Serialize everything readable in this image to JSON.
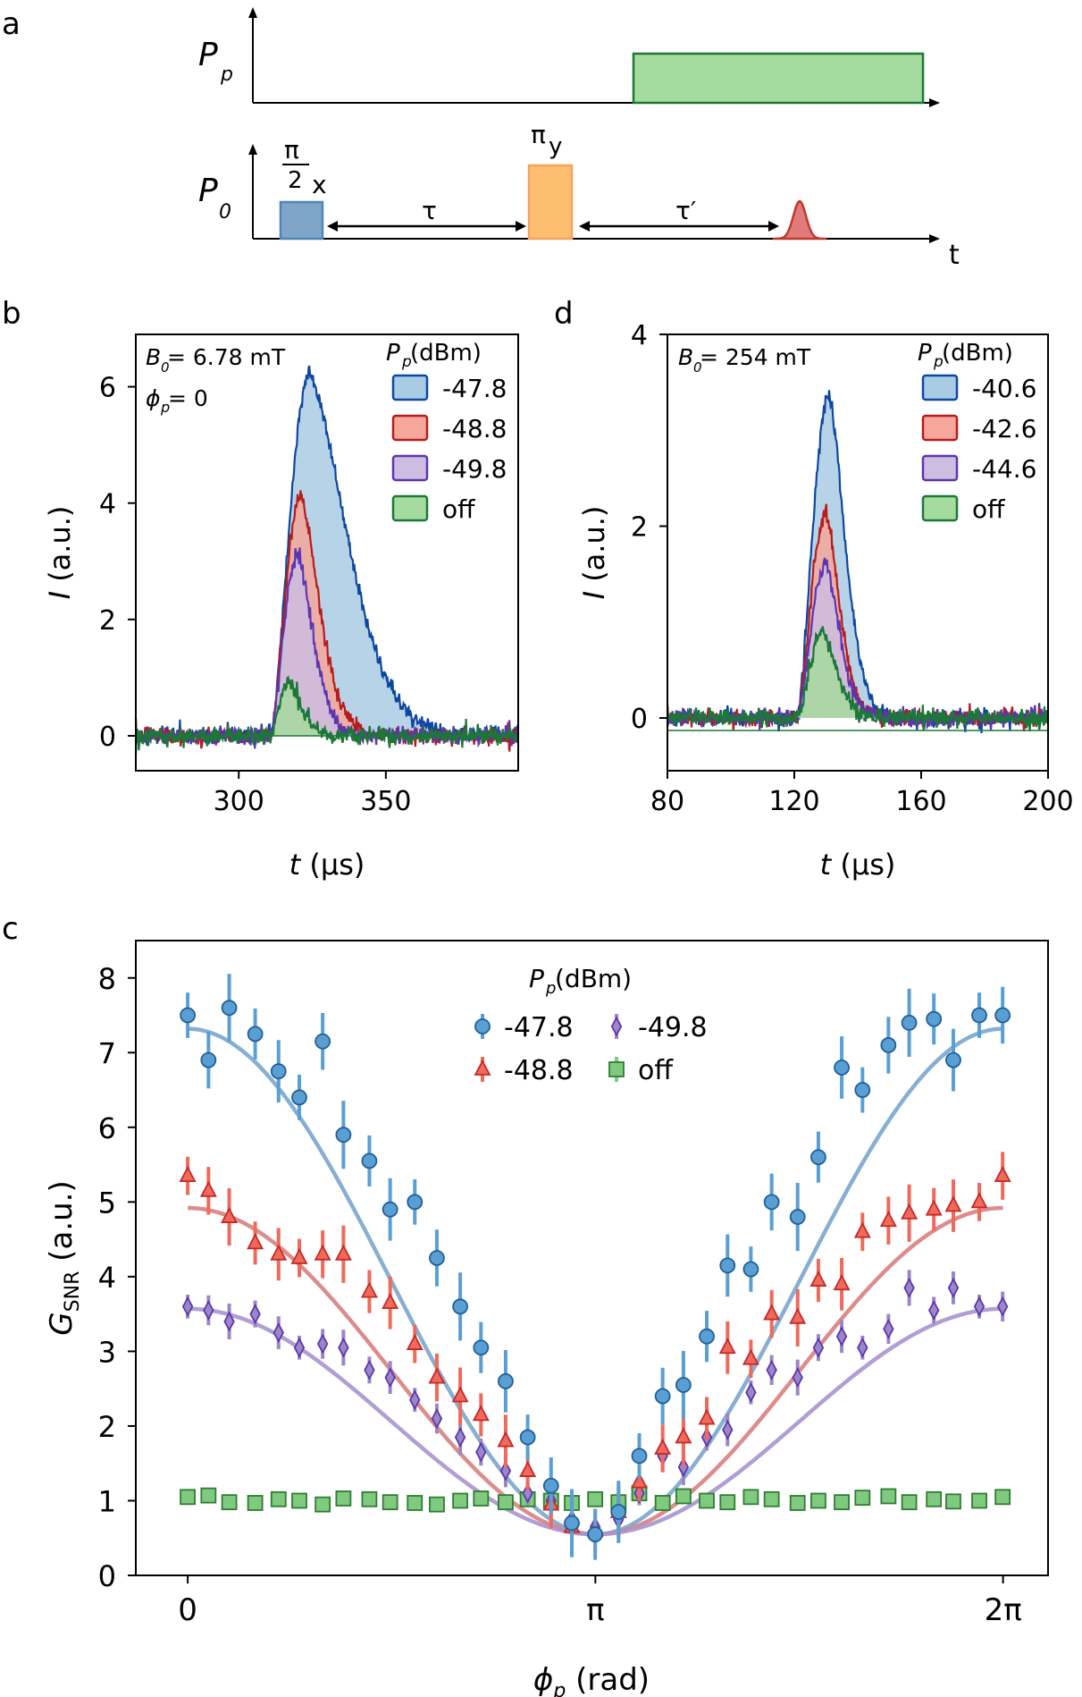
{
  "panel_a": {
    "label": "a",
    "pump_axis_label": "P",
    "pump_axis_sub": "p",
    "probe_axis_label": "P",
    "probe_axis_sub": "0",
    "time_label": "t",
    "pi2_num": "π",
    "pi2_den": "2",
    "pi2_sub": "x",
    "piy_main": "π",
    "piy_sub": "y",
    "tau": "τ",
    "tau_prime": "τ′",
    "colors": {
      "pump": "#a6dba0",
      "pump_edge": "#1b7837",
      "pi2": "#7fa6c9",
      "pi2_edge": "#4f86b8",
      "piy": "#fdbf6f",
      "piy_edge": "#f4a261",
      "echo": "#e07b7b",
      "echo_edge": "#c0392b"
    }
  },
  "chart_data": [
    {
      "id": "b",
      "type": "area",
      "panel_label": "b",
      "annotation_line1": "B",
      "annotation_line1_sub": "0",
      "annotation_line1_value": " = 6.78 mT",
      "annotation_line2": "ϕ",
      "annotation_line2_sub": "p",
      "annotation_line2_value": " = 0",
      "xlabel_italic": "t",
      "xlabel_rest": " (μs)",
      "ylabel_italic": "I",
      "ylabel_rest": " (a.u.)",
      "xlim": [
        265,
        395
      ],
      "ylim": [
        -0.6,
        6.9
      ],
      "xticks": [
        300,
        350
      ],
      "yticks": [
        0,
        2,
        4,
        6
      ],
      "legend_title_italic": "P",
      "legend_title_sub": "p",
      "legend_title_rest": " (dBm)",
      "series": [
        {
          "name": "-47.8",
          "fill": "#a9cbe4",
          "edge": "#0d47a1",
          "t0": 311,
          "peak_t": 324,
          "peak": 6.2,
          "rise": 6.5,
          "fall": 18,
          "seed": 11
        },
        {
          "name": "-48.8",
          "fill": "#f4a79a",
          "edge": "#b71c1c",
          "t0": 311,
          "peak_t": 321,
          "peak": 4.1,
          "rise": 5,
          "fall": 9,
          "seed": 23
        },
        {
          "name": "-49.8",
          "fill": "#cdbde0",
          "edge": "#5e35b1",
          "t0": 311,
          "peak_t": 320,
          "peak": 3.1,
          "rise": 5,
          "fall": 7.5,
          "seed": 37
        },
        {
          "name": "off",
          "fill": "#a6dba0",
          "edge": "#1b7837",
          "t0": 311,
          "peak_t": 317,
          "peak": 0.95,
          "rise": 4,
          "fall": 6,
          "seed": 53
        }
      ]
    },
    {
      "id": "d",
      "type": "area",
      "panel_label": "d",
      "annotation_line1": "B",
      "annotation_line1_sub": "0",
      "annotation_line1_value": " = 254 mT",
      "xlabel_italic": "t",
      "xlabel_rest": "  (μs)",
      "ylabel_italic": "I",
      "ylabel_rest": " (a.u.)",
      "xlim": [
        80,
        200
      ],
      "ylim": [
        -0.55,
        4.0
      ],
      "xticks": [
        80,
        120,
        160,
        200
      ],
      "yticks": [
        0,
        2,
        4
      ],
      "legend_title_italic": "P",
      "legend_title_sub": "p",
      "legend_title_rest": " (dBm)",
      "series": [
        {
          "name": "-40.6",
          "fill": "#a9cbe4",
          "edge": "#0d47a1",
          "t0": 121,
          "peak_t": 131,
          "peak": 3.35,
          "rise": 4,
          "fall": 7,
          "seed": 71
        },
        {
          "name": "-42.6",
          "fill": "#f4a79a",
          "edge": "#b71c1c",
          "t0": 121,
          "peak_t": 130,
          "peak": 2.15,
          "rise": 4,
          "fall": 6,
          "seed": 83
        },
        {
          "name": "-44.6",
          "fill": "#cdbde0",
          "edge": "#5e35b1",
          "t0": 121,
          "peak_t": 130,
          "peak": 1.6,
          "rise": 4,
          "fall": 6,
          "seed": 97
        },
        {
          "name": "off",
          "fill": "#a6dba0",
          "edge": "#1b7837",
          "t0": 121,
          "peak_t": 129,
          "peak": 0.9,
          "rise": 4,
          "fall": 6,
          "seed": 113
        }
      ]
    },
    {
      "id": "c",
      "type": "scatter",
      "panel_label": "c",
      "xlabel_italic": "ϕ",
      "xlabel_sub": "p",
      "xlabel_rest": " (rad)",
      "ylabel_main": "G",
      "ylabel_sub": "SNR",
      "ylabel_rest": " (a.u.)",
      "xlim": [
        -0.4,
        6.63
      ],
      "ylim": [
        0,
        8.5
      ],
      "xtick_values": [
        0,
        3.14159,
        6.28318
      ],
      "xtick_labels": [
        "0",
        "π",
        "2π"
      ],
      "yticks": [
        0,
        1,
        2,
        3,
        4,
        5,
        6,
        7,
        8
      ],
      "legend_title_italic": "P",
      "legend_title_sub": "p",
      "legend_title_rest": " (dBm)",
      "x": [
        0.0,
        0.16,
        0.32,
        0.52,
        0.7,
        0.86,
        1.04,
        1.2,
        1.4,
        1.56,
        1.75,
        1.92,
        2.1,
        2.26,
        2.45,
        2.62,
        2.8,
        2.96,
        3.14,
        3.32,
        3.48,
        3.66,
        3.82,
        4.0,
        4.16,
        4.34,
        4.5,
        4.7,
        4.86,
        5.04,
        5.2,
        5.4,
        5.56,
        5.75,
        5.9,
        6.1,
        6.28
      ],
      "series": [
        {
          "name": "-47.8",
          "marker": "circle",
          "color": "#5a9fd4",
          "edge": "#1f5f99",
          "fit_color": "#7aa6cf",
          "values": [
            7.5,
            6.9,
            7.6,
            7.25,
            6.75,
            6.4,
            7.15,
            5.9,
            5.55,
            4.9,
            5.0,
            4.25,
            3.6,
            3.05,
            2.6,
            1.85,
            1.2,
            0.7,
            0.55,
            0.85,
            1.6,
            2.4,
            2.55,
            3.2,
            4.15,
            4.1,
            5.0,
            4.8,
            5.6,
            6.8,
            6.5,
            7.1,
            7.4,
            7.45,
            6.9,
            7.5,
            7.5
          ],
          "err": 0.38,
          "fit_max": 7.32,
          "fit_min": 0.55
        },
        {
          "name": "-48.8",
          "marker": "triangle",
          "color": "#ef6a5a",
          "edge": "#c62828",
          "fit_color": "#d98080",
          "values": [
            5.35,
            5.15,
            4.8,
            4.45,
            4.3,
            4.25,
            4.3,
            4.3,
            3.8,
            3.65,
            3.1,
            2.65,
            2.4,
            2.15,
            1.8,
            1.4,
            0.95,
            0.65,
            0.6,
            0.85,
            1.25,
            1.7,
            1.85,
            2.1,
            3.05,
            2.9,
            3.5,
            3.45,
            3.95,
            3.9,
            4.6,
            4.75,
            4.85,
            4.9,
            4.95,
            5.0,
            5.35
          ],
          "err": 0.32,
          "fit_max": 4.92,
          "fit_min": 0.55
        },
        {
          "name": "-49.8",
          "marker": "diamond",
          "color": "#9b87c6",
          "edge": "#5e35b1",
          "fit_color": "#a793cf",
          "values": [
            3.6,
            3.55,
            3.4,
            3.5,
            3.25,
            3.05,
            3.1,
            3.05,
            2.75,
            2.65,
            2.35,
            2.1,
            1.85,
            1.65,
            1.4,
            1.1,
            1.0,
            0.75,
            0.65,
            0.75,
            1.1,
            1.6,
            1.45,
            1.85,
            1.95,
            2.45,
            2.75,
            2.65,
            3.05,
            3.2,
            3.05,
            3.3,
            3.85,
            3.55,
            3.85,
            3.6,
            3.6
          ],
          "err": 0.2,
          "fit_max": 3.57,
          "fit_min": 0.55
        },
        {
          "name": "off",
          "marker": "square",
          "color": "#7fca7f",
          "edge": "#2e7d32",
          "fit_color": "none",
          "values": [
            1.05,
            1.07,
            0.98,
            0.97,
            1.02,
            1.0,
            0.95,
            1.03,
            1.02,
            0.98,
            0.97,
            0.95,
            1.0,
            1.03,
            0.98,
            1.02,
            1.0,
            0.97,
            1.02,
            0.98,
            1.1,
            0.97,
            1.06,
            1.0,
            0.98,
            1.05,
            1.02,
            0.97,
            1.0,
            0.98,
            1.04,
            1.06,
            0.98,
            1.02,
            0.99,
            1.0,
            1.05
          ],
          "err": 0.05,
          "fit_max": null,
          "fit_min": null
        }
      ]
    }
  ]
}
